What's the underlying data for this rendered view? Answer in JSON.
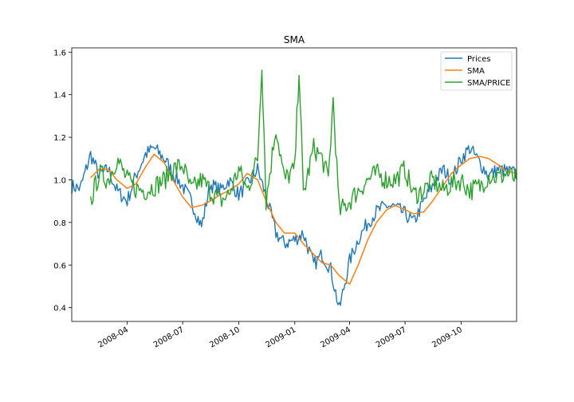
{
  "chart_data": {
    "type": "line",
    "title": "SMA",
    "xlabel": "",
    "ylabel": "",
    "ylim": [
      0.335,
      1.62
    ],
    "xlim": [
      "2008-01-01",
      "2009-12-31"
    ],
    "x_ticks": [
      "2008-04",
      "2008-07",
      "2008-10",
      "2009-01",
      "2009-04",
      "2009-07",
      "2009-10"
    ],
    "y_ticks": [
      "0.4",
      "0.6",
      "0.8",
      "1.0",
      "1.2",
      "1.4",
      "1.6"
    ],
    "legend": {
      "position": "top-right",
      "entries": [
        "Prices",
        "SMA",
        "SMA/PRICE"
      ]
    },
    "grid": false,
    "series": [
      {
        "name": "Prices",
        "color": "#1f77b4",
        "x": [
          "2008-01-01",
          "2008-01-15",
          "2008-02-01",
          "2008-02-15",
          "2008-03-01",
          "2008-03-15",
          "2008-04-01",
          "2008-04-15",
          "2008-05-01",
          "2008-05-15",
          "2008-06-01",
          "2008-06-15",
          "2008-07-01",
          "2008-07-15",
          "2008-08-01",
          "2008-08-15",
          "2008-09-01",
          "2008-09-15",
          "2008-10-01",
          "2008-10-15",
          "2008-11-01",
          "2008-11-15",
          "2008-12-01",
          "2008-12-15",
          "2009-01-01",
          "2009-01-15",
          "2009-02-01",
          "2009-02-15",
          "2009-03-01",
          "2009-03-15",
          "2009-04-01",
          "2009-04-15",
          "2009-05-01",
          "2009-05-15",
          "2009-06-01",
          "2009-06-15",
          "2009-07-01",
          "2009-07-15",
          "2009-08-01",
          "2009-08-15",
          "2009-09-01",
          "2009-09-15",
          "2009-10-01",
          "2009-10-15",
          "2009-11-01",
          "2009-11-15",
          "2009-12-01",
          "2009-12-15",
          "2009-12-31"
        ],
        "values": [
          0.97,
          0.96,
          1.12,
          1.02,
          1.05,
          0.95,
          0.9,
          1.02,
          1.12,
          1.15,
          1.1,
          1.03,
          0.97,
          0.9,
          0.78,
          0.98,
          0.95,
          1.0,
          0.93,
          0.98,
          1.05,
          0.92,
          0.75,
          0.7,
          0.72,
          0.75,
          0.6,
          0.65,
          0.58,
          0.39,
          0.62,
          0.72,
          0.8,
          0.85,
          0.88,
          0.87,
          0.84,
          0.8,
          0.9,
          0.97,
          1.05,
          1.0,
          1.1,
          1.15,
          1.08,
          1.02,
          1.05,
          1.04,
          1.03
        ]
      },
      {
        "name": "SMA",
        "color": "#ff7f0e",
        "x": [
          "2008-02-01",
          "2008-02-15",
          "2008-03-01",
          "2008-03-15",
          "2008-04-01",
          "2008-04-15",
          "2008-05-01",
          "2008-05-15",
          "2008-06-01",
          "2008-06-15",
          "2008-07-01",
          "2008-07-15",
          "2008-08-01",
          "2008-08-15",
          "2008-09-01",
          "2008-09-15",
          "2008-10-01",
          "2008-10-15",
          "2008-11-01",
          "2008-11-15",
          "2008-12-01",
          "2008-12-15",
          "2009-01-01",
          "2009-01-15",
          "2009-02-01",
          "2009-02-15",
          "2009-03-01",
          "2009-03-15",
          "2009-04-01",
          "2009-04-15",
          "2009-05-01",
          "2009-05-15",
          "2009-06-01",
          "2009-06-15",
          "2009-07-01",
          "2009-07-15",
          "2009-08-01",
          "2009-08-15",
          "2009-09-01",
          "2009-09-15",
          "2009-10-01",
          "2009-10-15",
          "2009-11-01",
          "2009-11-15",
          "2009-12-01",
          "2009-12-15",
          "2009-12-31"
        ],
        "values": [
          1.01,
          1.05,
          1.05,
          1.0,
          0.96,
          0.98,
          1.06,
          1.12,
          1.08,
          1.0,
          0.92,
          0.87,
          0.88,
          0.9,
          0.93,
          0.95,
          0.98,
          1.03,
          1.0,
          0.9,
          0.8,
          0.75,
          0.75,
          0.7,
          0.65,
          0.61,
          0.6,
          0.55,
          0.51,
          0.6,
          0.72,
          0.8,
          0.86,
          0.88,
          0.86,
          0.84,
          0.85,
          0.9,
          0.97,
          1.03,
          1.07,
          1.1,
          1.11,
          1.1,
          1.07,
          1.04,
          1.03
        ]
      },
      {
        "name": "SMA/PRICE",
        "color": "#2ca02c",
        "x": [
          "2008-02-01",
          "2008-02-15",
          "2008-03-01",
          "2008-03-15",
          "2008-04-01",
          "2008-04-15",
          "2008-05-01",
          "2008-05-15",
          "2008-06-01",
          "2008-06-15",
          "2008-07-01",
          "2008-07-15",
          "2008-08-01",
          "2008-08-15",
          "2008-09-01",
          "2008-09-15",
          "2008-10-01",
          "2008-10-15",
          "2008-11-01",
          "2008-11-08",
          "2008-11-15",
          "2008-12-01",
          "2008-12-15",
          "2009-01-01",
          "2009-01-08",
          "2009-01-15",
          "2009-02-01",
          "2009-02-15",
          "2009-02-25",
          "2009-03-05",
          "2009-03-15",
          "2009-04-01",
          "2009-04-15",
          "2009-05-01",
          "2009-05-15",
          "2009-06-01",
          "2009-06-15",
          "2009-07-01",
          "2009-07-15",
          "2009-08-01",
          "2009-08-15",
          "2009-09-01",
          "2009-09-15",
          "2009-10-01",
          "2009-10-15",
          "2009-11-01",
          "2009-11-15",
          "2009-12-01",
          "2009-12-15",
          "2009-12-31"
        ],
        "values": [
          0.9,
          1.03,
          1.0,
          1.1,
          1.0,
          0.96,
          0.95,
          0.97,
          1.0,
          1.05,
          1.07,
          0.95,
          1.0,
          0.95,
          0.9,
          0.93,
          1.05,
          0.95,
          1.1,
          1.55,
          0.9,
          1.25,
          1.0,
          1.05,
          1.53,
          0.93,
          1.15,
          1.1,
          1.0,
          1.38,
          0.85,
          0.9,
          0.95,
          1.0,
          1.03,
          1.0,
          1.0,
          1.05,
          0.93,
          0.95,
          1.0,
          0.95,
          0.98,
          1.0,
          0.95,
          0.97,
          1.02,
          1.01,
          1.03,
          1.0
        ]
      }
    ]
  }
}
